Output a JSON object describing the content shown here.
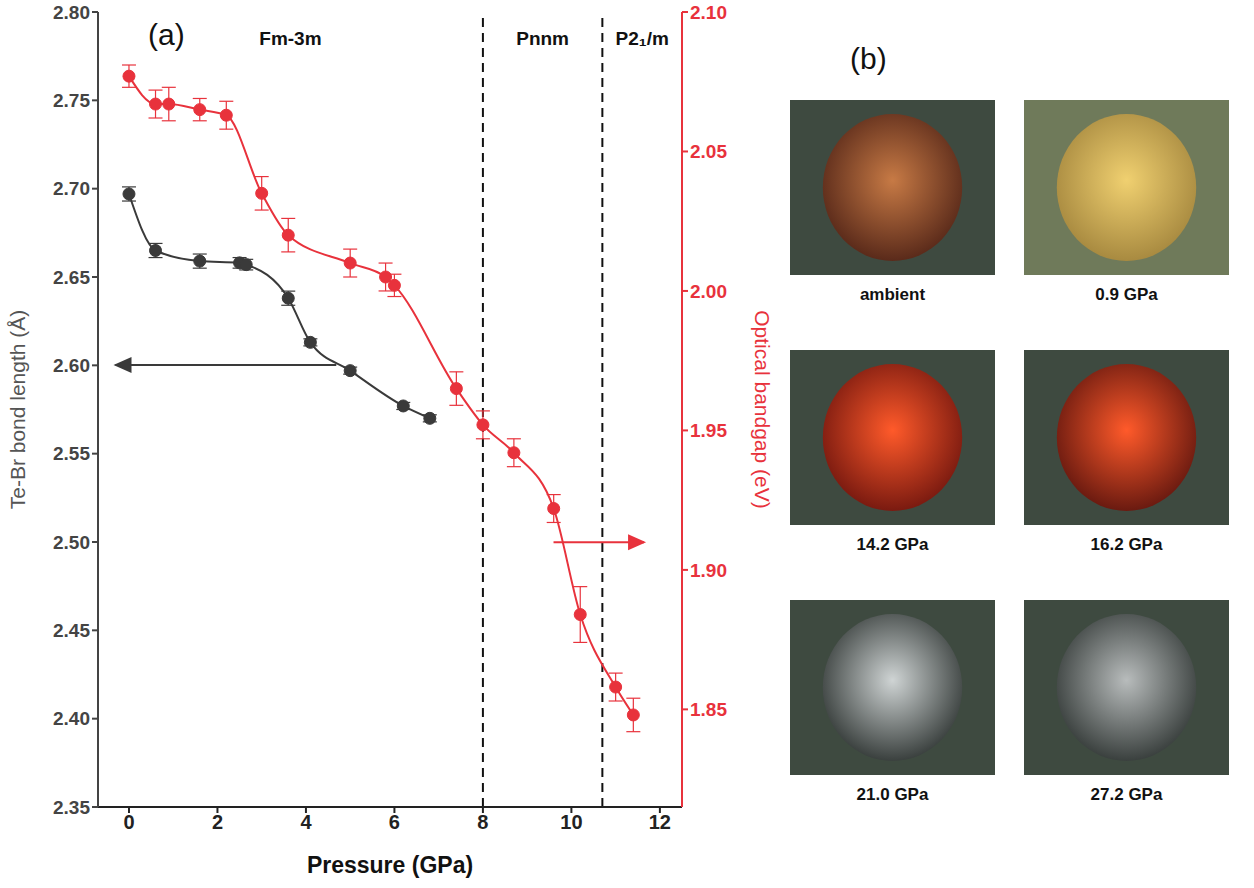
{
  "chart_data": {
    "type": "line",
    "panel_label": "(a)",
    "x_label": "Pressure (GPa)",
    "y_label": "Te-Br bond length (Å)",
    "y2_label": "Optical bandgap (eV)",
    "xlim": [
      -0.7,
      12.5
    ],
    "xticks": [
      0,
      2,
      4,
      6,
      8,
      10,
      12
    ],
    "ylim": [
      2.35,
      2.8
    ],
    "yticks": [
      2.35,
      {
        "value": 2.4,
        "label": "2.40"
      },
      2.45,
      {
        "value": 2.5,
        "label": "2.50"
      },
      2.55,
      {
        "value": 2.6,
        "label": "2.60"
      },
      2.65,
      {
        "value": 2.7,
        "label": "2.70"
      },
      2.75,
      {
        "value": 2.8,
        "label": "2.80"
      }
    ],
    "y2lim": [
      1.815,
      2.1
    ],
    "y2ticks": [
      1.85,
      {
        "value": 1.9,
        "label": "1.90"
      },
      1.95,
      {
        "value": 2,
        "label": "2.00"
      },
      2.05,
      {
        "value": 2.1,
        "label": "2.10"
      }
    ],
    "grid": false,
    "phase_boundaries": [
      8.0,
      10.7
    ],
    "phase_labels": [
      "Fm-3m",
      "Pnnm",
      "P2₁/m"
    ],
    "series": [
      {
        "color": "#3a3a3a",
        "axis": "y",
        "marker": "circle",
        "line_style": "smooth",
        "x": [
          0,
          0.6,
          1.6,
          2.5,
          2.65,
          3.6,
          4.1,
          5.0,
          6.2,
          6.8
        ],
        "values": [
          2.697,
          2.665,
          2.659,
          2.658,
          2.657,
          2.638,
          2.613,
          2.597,
          2.577,
          2.57
        ],
        "errors": [
          0.004,
          0.004,
          0.004,
          0.003,
          0.003,
          0.004,
          0.002,
          0.002,
          0.002,
          0.002
        ]
      },
      {
        "color": "#e8323c",
        "axis": "y2",
        "marker": "circle",
        "line_style": "smooth",
        "x": [
          0,
          0.6,
          0.9,
          1.6,
          2.2,
          3.0,
          3.6,
          5.0,
          5.8,
          6.0,
          7.4,
          8.0,
          8.7,
          9.6,
          10.2,
          11.0,
          11.4
        ],
        "values": [
          2.077,
          2.067,
          2.067,
          2.065,
          2.063,
          2.035,
          2.02,
          2.01,
          2.005,
          2.002,
          1.965,
          1.952,
          1.942,
          1.922,
          1.884,
          1.858,
          1.848
        ],
        "errors": [
          0.004,
          0.005,
          0.006,
          0.004,
          0.005,
          0.006,
          0.006,
          0.005,
          0.005,
          0.004,
          0.006,
          0.005,
          0.005,
          0.005,
          0.01,
          0.005,
          0.006
        ]
      }
    ]
  },
  "photos": {
    "panel_label": "(b)",
    "captions": [
      "ambient",
      "0.9 GPa",
      "14.2 GPa",
      "16.2 GPa",
      "21.0 GPa",
      "27.2 GPa"
    ]
  }
}
